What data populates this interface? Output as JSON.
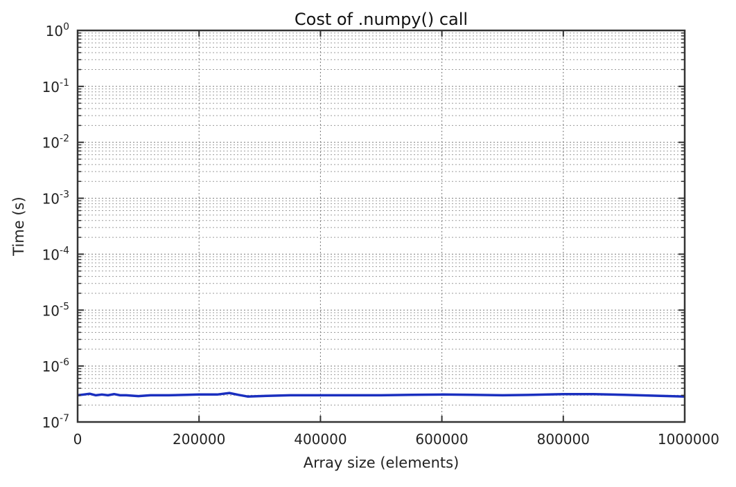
{
  "chart_data": {
    "type": "line",
    "title": "Cost of .numpy() call",
    "xlabel": "Array size (elements)",
    "ylabel": "Time (s)",
    "xscale": "linear",
    "yscale": "log",
    "xlim": [
      0,
      1000000
    ],
    "ylim": [
      1e-07,
      1
    ],
    "grid": true,
    "legend": "none",
    "x_ticks": [
      {
        "value": 0,
        "label": "0"
      },
      {
        "value": 200000,
        "label": "200000"
      },
      {
        "value": 400000,
        "label": "400000"
      },
      {
        "value": 600000,
        "label": "600000"
      },
      {
        "value": 800000,
        "label": "800000"
      },
      {
        "value": 1000000,
        "label": "1000000"
      }
    ],
    "y_ticks": [
      {
        "exponent": 0,
        "base": "10",
        "exp_label": "0"
      },
      {
        "exponent": -1,
        "base": "10",
        "exp_label": "-1"
      },
      {
        "exponent": -2,
        "base": "10",
        "exp_label": "-2"
      },
      {
        "exponent": -3,
        "base": "10",
        "exp_label": "-3"
      },
      {
        "exponent": -4,
        "base": "10",
        "exp_label": "-4"
      },
      {
        "exponent": -5,
        "base": "10",
        "exp_label": "-5"
      },
      {
        "exponent": -6,
        "base": "10",
        "exp_label": "-6"
      },
      {
        "exponent": -7,
        "base": "10",
        "exp_label": "-7"
      }
    ],
    "series": [
      {
        "color": "#1a2fbf",
        "x": [
          0,
          10000,
          20000,
          30000,
          40000,
          50000,
          60000,
          70000,
          80000,
          90000,
          100000,
          120000,
          150000,
          180000,
          200000,
          230000,
          250000,
          265000,
          280000,
          300000,
          350000,
          400000,
          450000,
          500000,
          550000,
          600000,
          650000,
          700000,
          750000,
          800000,
          850000,
          900000,
          950000,
          1000000
        ],
        "y": [
          3e-07,
          3.1e-07,
          3.2e-07,
          3e-07,
          3.1e-07,
          3e-07,
          3.15e-07,
          3e-07,
          3e-07,
          2.95e-07,
          2.9e-07,
          3e-07,
          3e-07,
          3.05e-07,
          3.1e-07,
          3.1e-07,
          3.3e-07,
          3.05e-07,
          2.85e-07,
          2.9e-07,
          3e-07,
          3e-07,
          3e-07,
          3e-07,
          3.05e-07,
          3.1e-07,
          3.05e-07,
          3e-07,
          3.05e-07,
          3.15e-07,
          3.15e-07,
          3.05e-07,
          2.95e-07,
          2.85e-07
        ]
      }
    ]
  }
}
